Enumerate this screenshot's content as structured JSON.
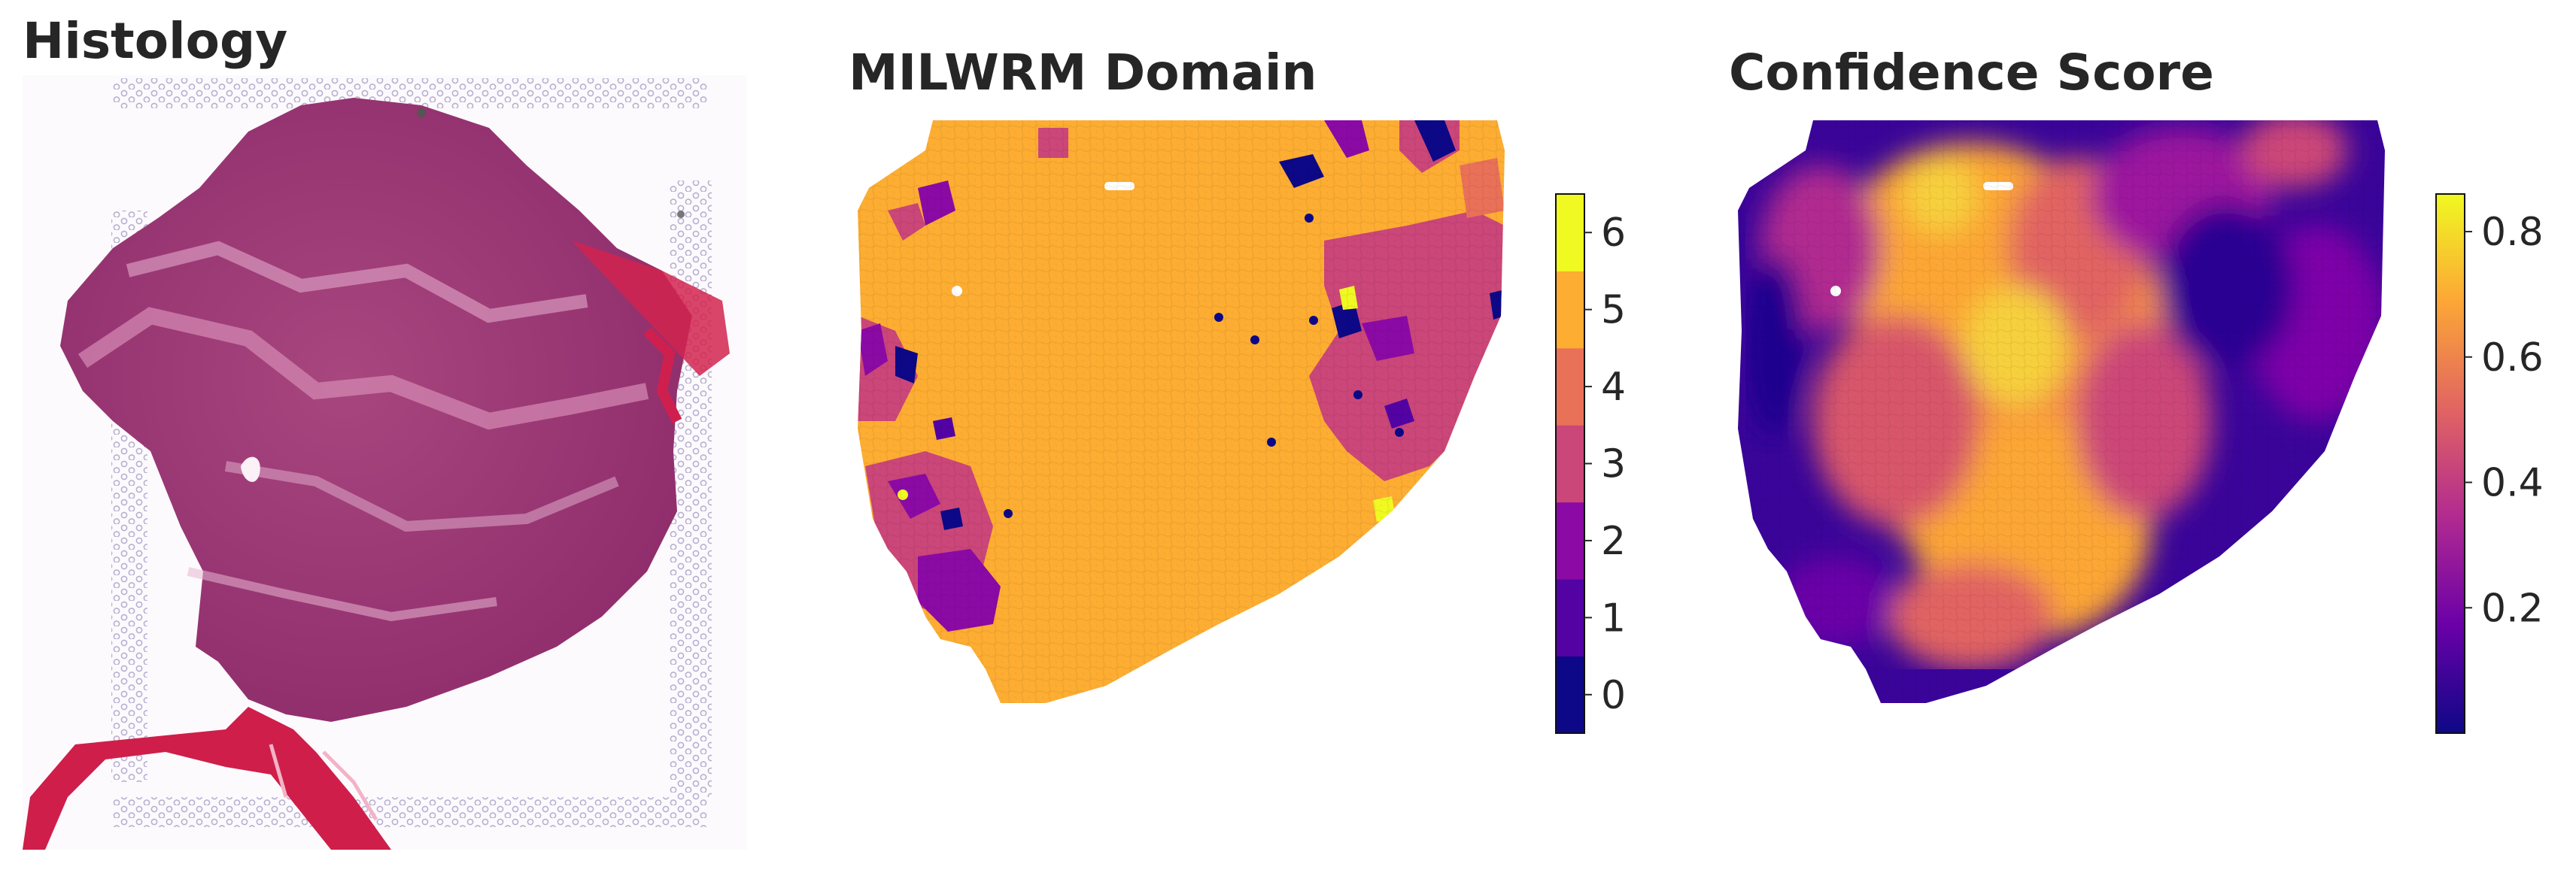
{
  "panels": [
    {
      "id": "histology",
      "title": "Histology"
    },
    {
      "id": "domain",
      "title": "MILWRM Domain"
    },
    {
      "id": "confidence",
      "title": "Confidence Score"
    }
  ],
  "domain_colorbar": {
    "ticks": [
      "0",
      "1",
      "2",
      "3",
      "4",
      "5",
      "6"
    ],
    "colors": [
      "#0d0887",
      "#5302a3",
      "#8b0aa5",
      "#cb4679",
      "#e97158",
      "#fdad32",
      "#f0f921"
    ]
  },
  "confidence_colorbar": {
    "ticks": [
      "0.2",
      "0.4",
      "0.6",
      "0.8"
    ],
    "tick_values": [
      0.2,
      0.4,
      0.6,
      0.8
    ],
    "range": [
      0.0,
      0.86
    ],
    "colormap": "plasma",
    "stops": [
      "#0d0887",
      "#6a00a8",
      "#b12a90",
      "#e16462",
      "#fca636",
      "#f0f921"
    ]
  }
}
